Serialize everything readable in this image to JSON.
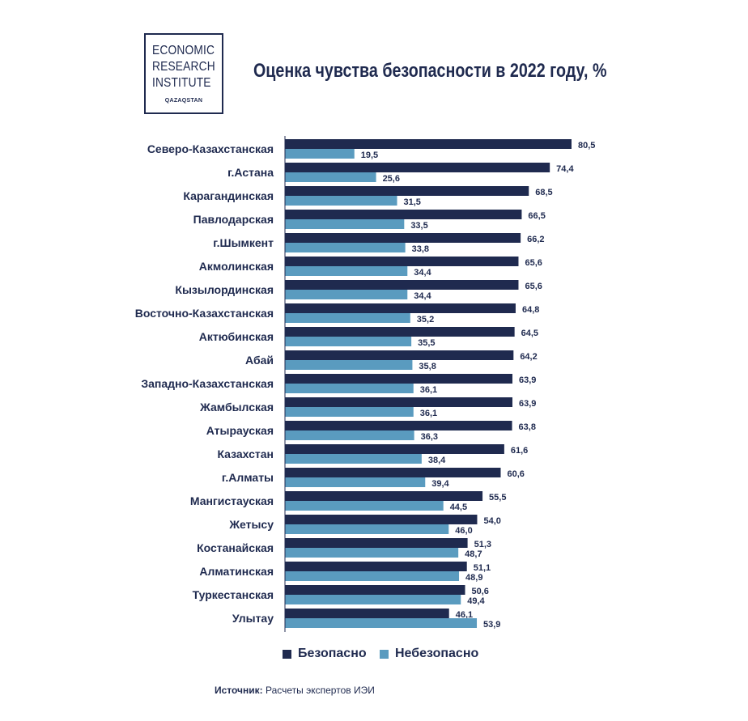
{
  "logo": {
    "lines": [
      "ECONOMIC",
      "RESEARCH",
      "INSTITUTE"
    ],
    "sub": "QAZAQSTAN"
  },
  "title": "Оценка чувства безопасности в 2022 году, %",
  "source": {
    "label": "Источник:",
    "text": "Расчеты экспертов ИЭИ"
  },
  "colors": {
    "safe": "#1f2a4f",
    "unsafe": "#5a9bbf"
  },
  "chart_data": {
    "type": "bar",
    "orientation": "horizontal",
    "title": "Оценка чувства безопасности в 2022 году, %",
    "xlim": [
      0,
      80.5
    ],
    "grid": false,
    "legend_position": "bottom",
    "categories": [
      "Северо-Казахстанская",
      "г.Астана",
      "Карагандинская",
      "Павлодарская",
      "г.Шымкент",
      "Акмолинская",
      "Кызылординская",
      "Восточно-Казахстанская",
      "Актюбинская",
      "Абай",
      "Западно-Казахстанская",
      "Жамбылская",
      "Атырауская",
      "Казахстан",
      "г.Алматы",
      "Мангистауская",
      "Жетысу",
      "Костанайская",
      "Алматинская",
      "Туркестанская",
      "Улытау"
    ],
    "series": [
      {
        "name": "Безопасно",
        "values": [
          80.5,
          74.4,
          68.5,
          66.5,
          66.2,
          65.6,
          65.6,
          64.8,
          64.5,
          64.2,
          63.9,
          63.9,
          63.8,
          61.6,
          60.6,
          55.5,
          54.0,
          51.3,
          51.1,
          50.6,
          46.1
        ],
        "labels": [
          "80,5",
          "74,4",
          "68,5",
          "66,5",
          "66,2",
          "65,6",
          "65,6",
          "64,8",
          "64,5",
          "64,2",
          "63,9",
          "63,9",
          "63,8",
          "61,6",
          "60,6",
          "55,5",
          "54,0",
          "51,3",
          "51,1",
          "50,6",
          "46,1"
        ]
      },
      {
        "name": "Небезопасно",
        "values": [
          19.5,
          25.6,
          31.5,
          33.5,
          33.8,
          34.4,
          34.4,
          35.2,
          35.5,
          35.8,
          36.1,
          36.1,
          36.3,
          38.4,
          39.4,
          44.5,
          46.0,
          48.7,
          48.9,
          49.4,
          53.9
        ],
        "labels": [
          "19,5",
          "25,6",
          "31,5",
          "33,5",
          "33,8",
          "34,4",
          "34,4",
          "35,2",
          "35,5",
          "35,8",
          "36,1",
          "36,1",
          "36,3",
          "38,4",
          "39,4",
          "44,5",
          "46,0",
          "48,7",
          "48,9",
          "49,4",
          "53,9"
        ]
      }
    ]
  }
}
